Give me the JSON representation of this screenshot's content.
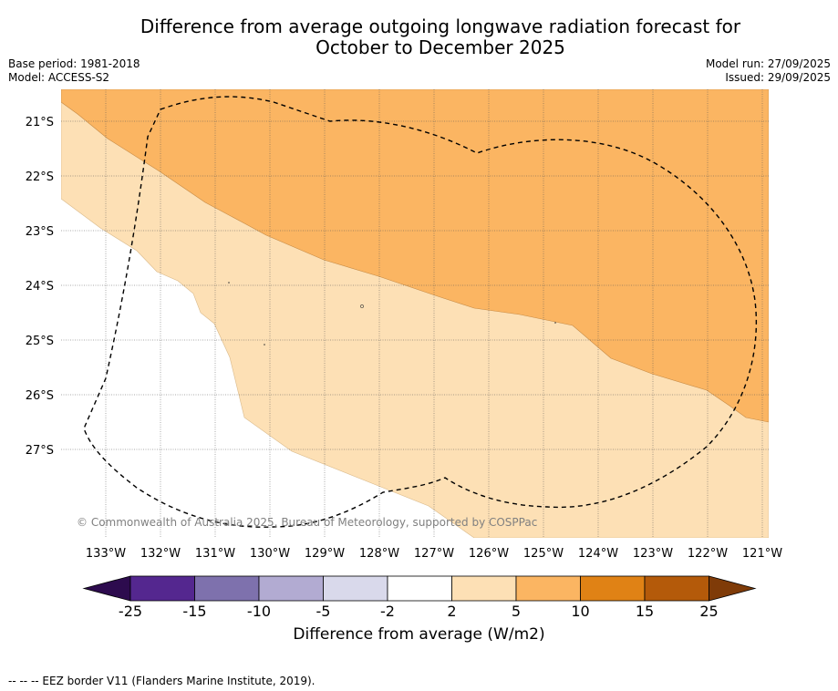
{
  "title": {
    "line1": "Difference from average outgoing longwave radiation forecast for",
    "line2": "October to December 2025"
  },
  "meta": {
    "base_period": "Base period: 1981-2018",
    "model": "Model: ACCESS-S2",
    "model_run": "Model run: 27/09/2025",
    "issued": "Issued: 29/09/2025"
  },
  "map": {
    "lon_labels": [
      "133°W",
      "132°W",
      "131°W",
      "130°W",
      "129°W",
      "128°W",
      "127°W",
      "126°W",
      "125°W",
      "124°W",
      "123°W",
      "122°W",
      "121°W"
    ],
    "lat_labels": [
      "21°S",
      "22°S",
      "23°S",
      "24°S",
      "25°S",
      "26°S",
      "27°S"
    ],
    "copyright": "© Commonwealth of Australia 2025, Bureau of Meteorology, supported by COSPPac",
    "region_colors": {
      "band_5_10": "#fbb562",
      "band_2_5": "#fde0b5",
      "band_neutral": "#ffffff"
    }
  },
  "colorbar": {
    "ticks": [
      "-25",
      "-15",
      "-10",
      "-5",
      "-2",
      "2",
      "5",
      "10",
      "15",
      "25"
    ],
    "colors": [
      "#54278f",
      "#7e71ad",
      "#b2abd2",
      "#d9d9eb",
      "#ffffff",
      "#fde0b5",
      "#fbb562",
      "#e08215",
      "#b45a0a"
    ],
    "extend_low_color": "#2d0b4e",
    "extend_high_color": "#7f3b08",
    "label": "Difference from average (W/m2)"
  },
  "footer": {
    "legend": "--  --  -- EEZ border V11 (Flanders Marine Institute, 2019)."
  }
}
